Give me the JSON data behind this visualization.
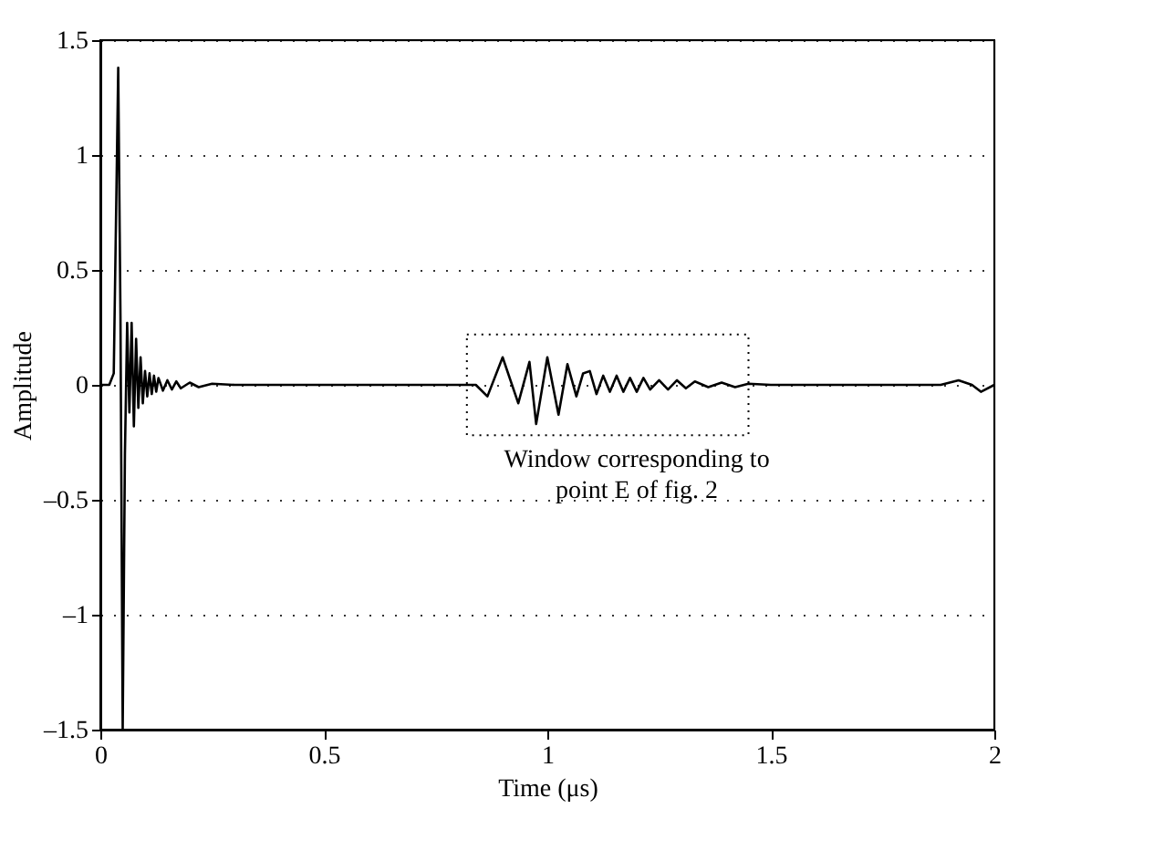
{
  "chart_data": {
    "type": "line",
    "xlabel": "Time (μs)",
    "ylabel": "Amplitude",
    "x": [
      0,
      0.02,
      0.03,
      0.04,
      0.045,
      0.05,
      0.055,
      0.06,
      0.065,
      0.07,
      0.075,
      0.08,
      0.085,
      0.09,
      0.095,
      0.1,
      0.105,
      0.11,
      0.115,
      0.12,
      0.125,
      0.13,
      0.14,
      0.15,
      0.16,
      0.17,
      0.18,
      0.2,
      0.22,
      0.25,
      0.3,
      0.84,
      0.866,
      0.9,
      0.935,
      0.96,
      0.975,
      1.0,
      1.025,
      1.045,
      1.065,
      1.08,
      1.095,
      1.11,
      1.125,
      1.14,
      1.155,
      1.17,
      1.185,
      1.2,
      1.215,
      1.23,
      1.25,
      1.27,
      1.29,
      1.31,
      1.33,
      1.36,
      1.39,
      1.42,
      1.45,
      1.5,
      1.88,
      1.92,
      1.95,
      1.97,
      2.0
    ],
    "series": [
      {
        "color": "#000000",
        "values": [
          0,
          0,
          0.05,
          1.38,
          0.3,
          -1.5,
          -0.3,
          0.27,
          -0.12,
          0.27,
          -0.18,
          0.2,
          -0.1,
          0.12,
          -0.08,
          0.06,
          -0.05,
          0.05,
          -0.04,
          0.04,
          -0.03,
          0.03,
          -0.025,
          0.02,
          -0.02,
          0.015,
          -0.015,
          0.01,
          -0.01,
          0.005,
          0,
          0,
          -0.05,
          0.12,
          -0.08,
          0.1,
          -0.17,
          0.12,
          -0.13,
          0.09,
          -0.05,
          0.05,
          0.06,
          -0.04,
          0.04,
          -0.03,
          0.04,
          -0.03,
          0.03,
          -0.03,
          0.03,
          -0.02,
          0.02,
          -0.02,
          0.02,
          -0.015,
          0.015,
          -0.01,
          0.01,
          -0.01,
          0.005,
          0,
          0,
          0.02,
          0,
          -0.03,
          0
        ]
      }
    ],
    "xlim": [
      0,
      2
    ],
    "xticks": [
      0,
      0.5,
      1,
      1.5,
      2
    ],
    "ylim": [
      -1.5,
      1.5
    ],
    "yticks": [
      {
        "value": -1.5,
        "label": "–1.5"
      },
      {
        "value": -1,
        "label": "–1"
      },
      {
        "value": -0.5,
        "label": "–0.5"
      },
      0,
      0.5,
      1,
      1.5
    ],
    "grid": "y",
    "marker": "none",
    "line_style": "solid",
    "annotations": [
      "Window corresponding to\npoint E of fig. 2"
    ]
  }
}
